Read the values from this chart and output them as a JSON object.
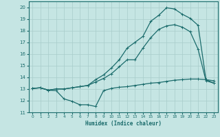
{
  "xlabel": "Humidex (Indice chaleur)",
  "xlim": [
    -0.5,
    23.5
  ],
  "ylim": [
    11,
    20.5
  ],
  "yticks": [
    11,
    12,
    13,
    14,
    15,
    16,
    17,
    18,
    19,
    20
  ],
  "xticks": [
    0,
    1,
    2,
    3,
    4,
    5,
    6,
    7,
    8,
    9,
    10,
    11,
    12,
    13,
    14,
    15,
    16,
    17,
    18,
    19,
    20,
    21,
    22,
    23
  ],
  "bg_color": "#c5e5e3",
  "grid_color": "#a8ccca",
  "line_color": "#1a6b6b",
  "curve1_x": [
    0,
    1,
    2,
    3,
    4,
    5,
    6,
    7,
    8,
    9,
    10,
    11,
    12,
    13,
    14,
    15,
    16,
    17,
    18,
    19,
    20,
    21,
    22,
    23
  ],
  "curve1_y": [
    13.05,
    13.1,
    12.9,
    12.85,
    12.15,
    11.95,
    11.65,
    11.65,
    11.5,
    12.85,
    13.05,
    13.15,
    13.2,
    13.3,
    13.4,
    13.5,
    13.55,
    13.65,
    13.75,
    13.8,
    13.85,
    13.85,
    13.8,
    13.7
  ],
  "curve2_x": [
    0,
    1,
    2,
    3,
    4,
    5,
    6,
    7,
    8,
    9,
    10,
    11,
    12,
    13,
    14,
    15,
    16,
    17,
    18,
    19,
    20,
    21,
    22,
    23
  ],
  "curve2_y": [
    13.05,
    13.1,
    12.9,
    13.0,
    13.0,
    13.1,
    13.2,
    13.3,
    13.6,
    13.9,
    14.3,
    14.9,
    15.5,
    15.5,
    16.5,
    17.4,
    18.1,
    18.4,
    18.5,
    18.3,
    17.9,
    16.4,
    13.7,
    13.5
  ],
  "curve3_x": [
    0,
    1,
    2,
    3,
    4,
    5,
    6,
    7,
    8,
    9,
    10,
    11,
    12,
    13,
    14,
    15,
    16,
    17,
    18,
    19,
    20,
    21,
    22,
    23
  ],
  "curve3_y": [
    13.05,
    13.1,
    12.9,
    13.0,
    13.0,
    13.1,
    13.2,
    13.3,
    13.8,
    14.2,
    14.8,
    15.5,
    16.5,
    17.0,
    17.5,
    18.8,
    19.3,
    19.95,
    19.85,
    19.4,
    19.05,
    18.45,
    13.8,
    13.5
  ]
}
